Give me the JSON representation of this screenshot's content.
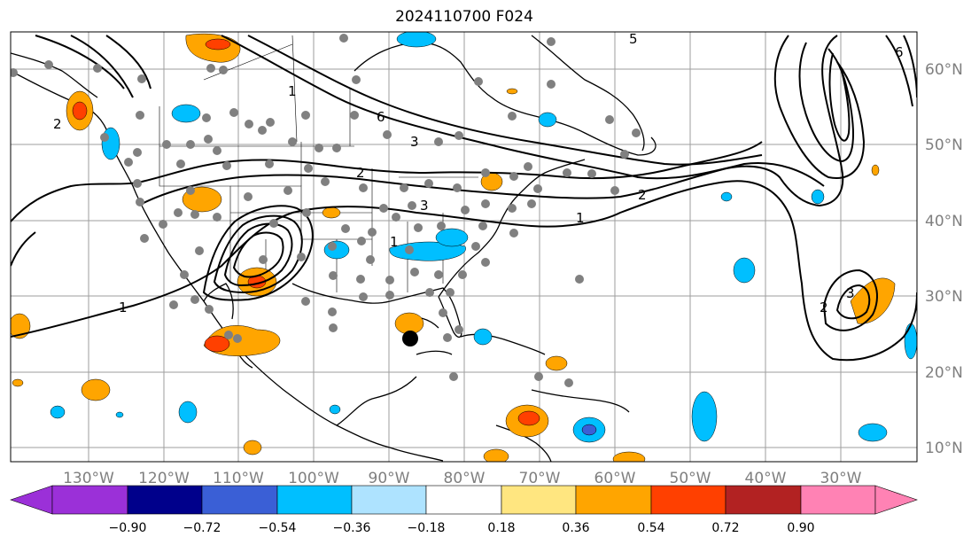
{
  "title": "2024110700 F024",
  "lon_labels": [
    "130°W",
    "120°W",
    "110°W",
    "100°W",
    "90°W",
    "80°W",
    "70°W",
    "60°W",
    "50°W",
    "40°W",
    "30°W"
  ],
  "lat_labels": [
    "60°N",
    "50°N",
    "40°N",
    "30°N",
    "20°N",
    "10°N"
  ],
  "colorbar": {
    "colors": [
      "#9b30d8",
      "#00008b",
      "#3a5fd6",
      "#00bfff",
      "#aee3ff",
      "#ffffff",
      "#ffe680",
      "#ffa500",
      "#ff4000",
      "#b22222",
      "#ff82b4"
    ],
    "ticks": [
      "−0.90",
      "−0.72",
      "−0.54",
      "−0.36",
      "−0.18",
      "0.18",
      "0.36",
      "0.54",
      "0.72",
      "0.90"
    ]
  },
  "contour_labels": [
    "1",
    "1",
    "1",
    "2",
    "2",
    "2",
    "3",
    "3",
    "3",
    "6",
    "6",
    "5",
    "2",
    "1"
  ],
  "storm_marker": "tropical-center"
}
